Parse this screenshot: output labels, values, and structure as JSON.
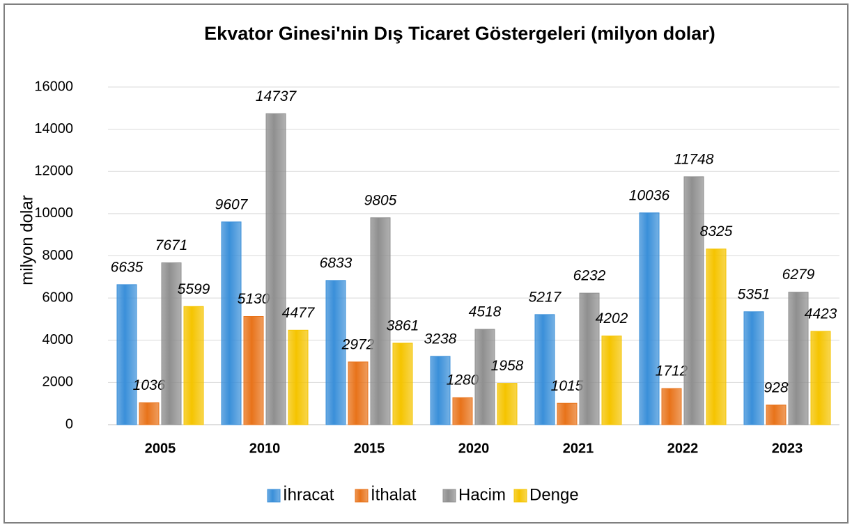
{
  "chart_data": {
    "type": "bar",
    "title": "Ekvator Ginesi'nin Dış Ticaret Göstergeleri (milyon dolar)",
    "y_label": "milyon dolar",
    "categories": [
      "2005",
      "2010",
      "2015",
      "2020",
      "2021",
      "2022",
      "2023"
    ],
    "series": [
      {
        "name": "İhracat",
        "color": "#3a8fd9",
        "values": [
          6635,
          9607,
          6833,
          3238,
          5217,
          10036,
          5351
        ]
      },
      {
        "name": "İthalat",
        "color": "#e8731a",
        "values": [
          1036,
          5130,
          2972,
          1280,
          1015,
          1712,
          928
        ]
      },
      {
        "name": "Hacim",
        "color": "#8f8f8f",
        "values": [
          7671,
          14737,
          9805,
          4518,
          6232,
          11748,
          6279
        ]
      },
      {
        "name": "Denge",
        "color": "#f5c400",
        "values": [
          5599,
          4477,
          3861,
          1958,
          4202,
          8325,
          4423
        ]
      }
    ],
    "ylim": [
      0,
      16000
    ],
    "yticks": [
      0,
      2000,
      4000,
      6000,
      8000,
      10000,
      12000,
      14000,
      16000
    ],
    "grid": true,
    "legend": "bottom"
  }
}
